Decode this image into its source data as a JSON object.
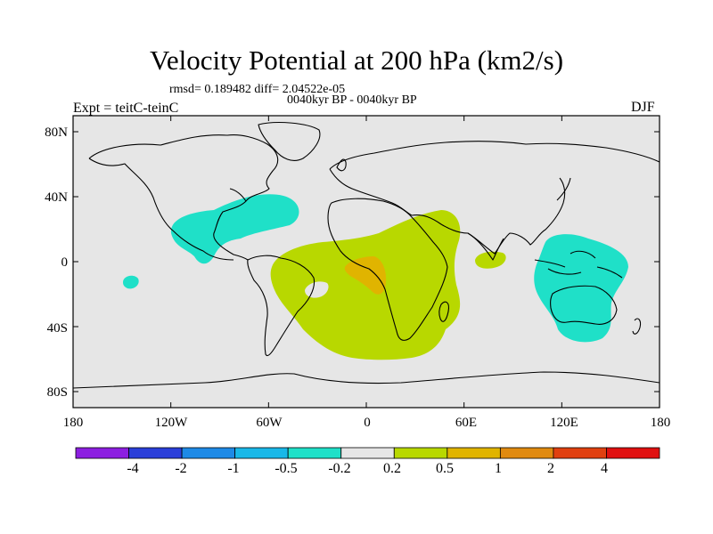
{
  "title": "Velocity Potential at 200 hPa (km2/s)",
  "stats": "rmsd= 0.189482 diff= 2.04522e-05",
  "period": "0040kyr BP - 0040kyr BP",
  "expt": "Expt = teitC-teinC",
  "season": "DJF",
  "lat_labels": [
    "80N",
    "40N",
    "0",
    "40S",
    "80S"
  ],
  "lon_labels": [
    "180",
    "120W",
    "60W",
    "0",
    "60E",
    "120E",
    "180"
  ],
  "colorbar": {
    "levels": [
      "-4",
      "-2",
      "-1",
      "-0.5",
      "-0.2",
      "0.2",
      "0.5",
      "1",
      "2",
      "4"
    ],
    "colors": [
      "#8c1ee0",
      "#2b3fd9",
      "#1e8ae6",
      "#19b8e8",
      "#1fe0c8",
      "#e6e6e6",
      "#b8d800",
      "#e0b400",
      "#e08a10",
      "#e04010",
      "#e01010"
    ]
  },
  "map_colors": {
    "background": "#e6e6e6",
    "negative": "#1fe0c8",
    "positive": "#b8d800",
    "strong_positive": "#e0b400"
  }
}
